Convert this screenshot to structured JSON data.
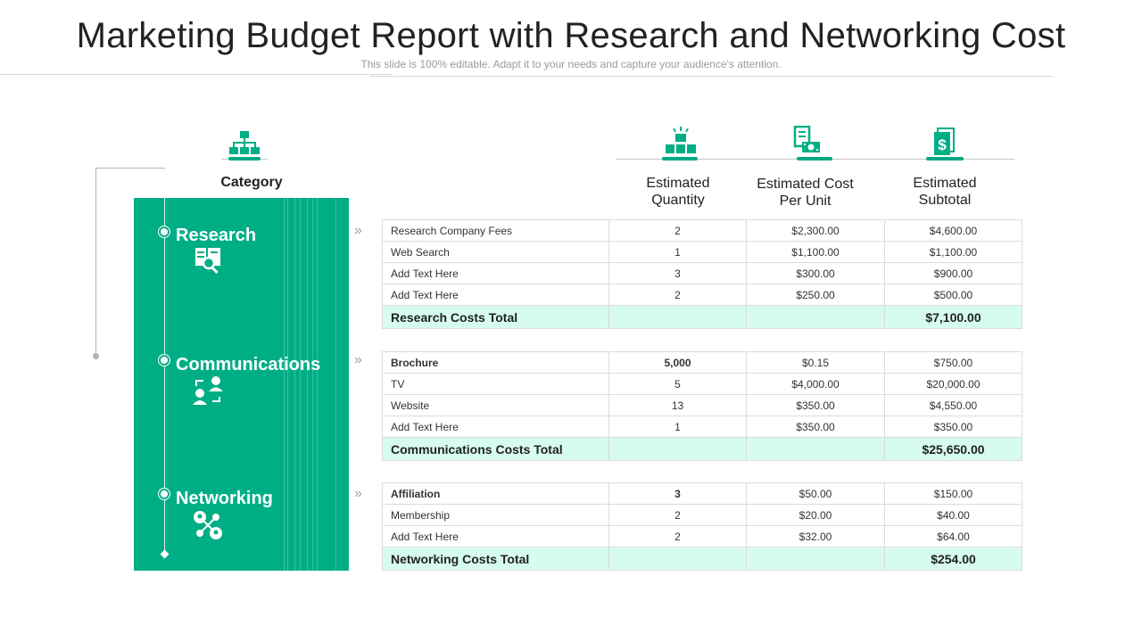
{
  "header": {
    "title": "Marketing Budget Report with Research and Networking Cost",
    "subtitle": "This slide is 100% editable. Adapt it to your needs and capture your audience's attention."
  },
  "columns": {
    "category": "Category",
    "quantity": "Estimated Quantity",
    "cost_per_unit": "Estimated Cost Per Unit",
    "subtotal": "Estimated Subtotal"
  },
  "icons": {
    "category": "hierarchy-icon",
    "quantity": "stacked-boxes-icon",
    "cost_per_unit": "invoice-money-icon",
    "subtotal": "dollar-document-icon",
    "research": "research-document-search-icon",
    "communications": "people-exchange-icon",
    "networking": "network-people-icon"
  },
  "colors": {
    "accent": "#00ae86",
    "total_row": "#d6fbef"
  },
  "sections": [
    {
      "name": "Research",
      "rows": [
        {
          "item": "Research Company Fees",
          "qty": "2",
          "unit": "$2,300.00",
          "subtotal": "$4,600.00"
        },
        {
          "item": "Web Search",
          "qty": "1",
          "unit": "$1,100.00",
          "subtotal": "$1,100.00"
        },
        {
          "item": "Add Text Here",
          "qty": "3",
          "unit": "$300.00",
          "subtotal": "$900.00"
        },
        {
          "item": "Add Text Here",
          "qty": "2",
          "unit": "$250.00",
          "subtotal": "$500.00"
        }
      ],
      "total_label": "Research Costs Total",
      "total_value": "$7,100.00"
    },
    {
      "name": "Communications",
      "rows": [
        {
          "item": "Brochure",
          "qty": "5,000",
          "unit": "$0.15",
          "subtotal": "$750.00"
        },
        {
          "item": "TV",
          "qty": "5",
          "unit": "$4,000.00",
          "subtotal": "$20,000.00"
        },
        {
          "item": "Website",
          "qty": "13",
          "unit": "$350.00",
          "subtotal": "$4,550.00"
        },
        {
          "item": "Add Text Here",
          "qty": "1",
          "unit": "$350.00",
          "subtotal": "$350.00"
        }
      ],
      "total_label": "Communications Costs Total",
      "total_value": "$25,650.00"
    },
    {
      "name": "Networking",
      "rows": [
        {
          "item": "Affiliation",
          "qty": "3",
          "unit": "$50.00",
          "subtotal": "$150.00"
        },
        {
          "item": "Membership",
          "qty": "2",
          "unit": "$20.00",
          "subtotal": "$40.00"
        },
        {
          "item": "Add Text Here",
          "qty": "2",
          "unit": "$32.00",
          "subtotal": "$64.00"
        }
      ],
      "total_label": "Networking Costs Total",
      "total_value": "$254.00"
    }
  ]
}
